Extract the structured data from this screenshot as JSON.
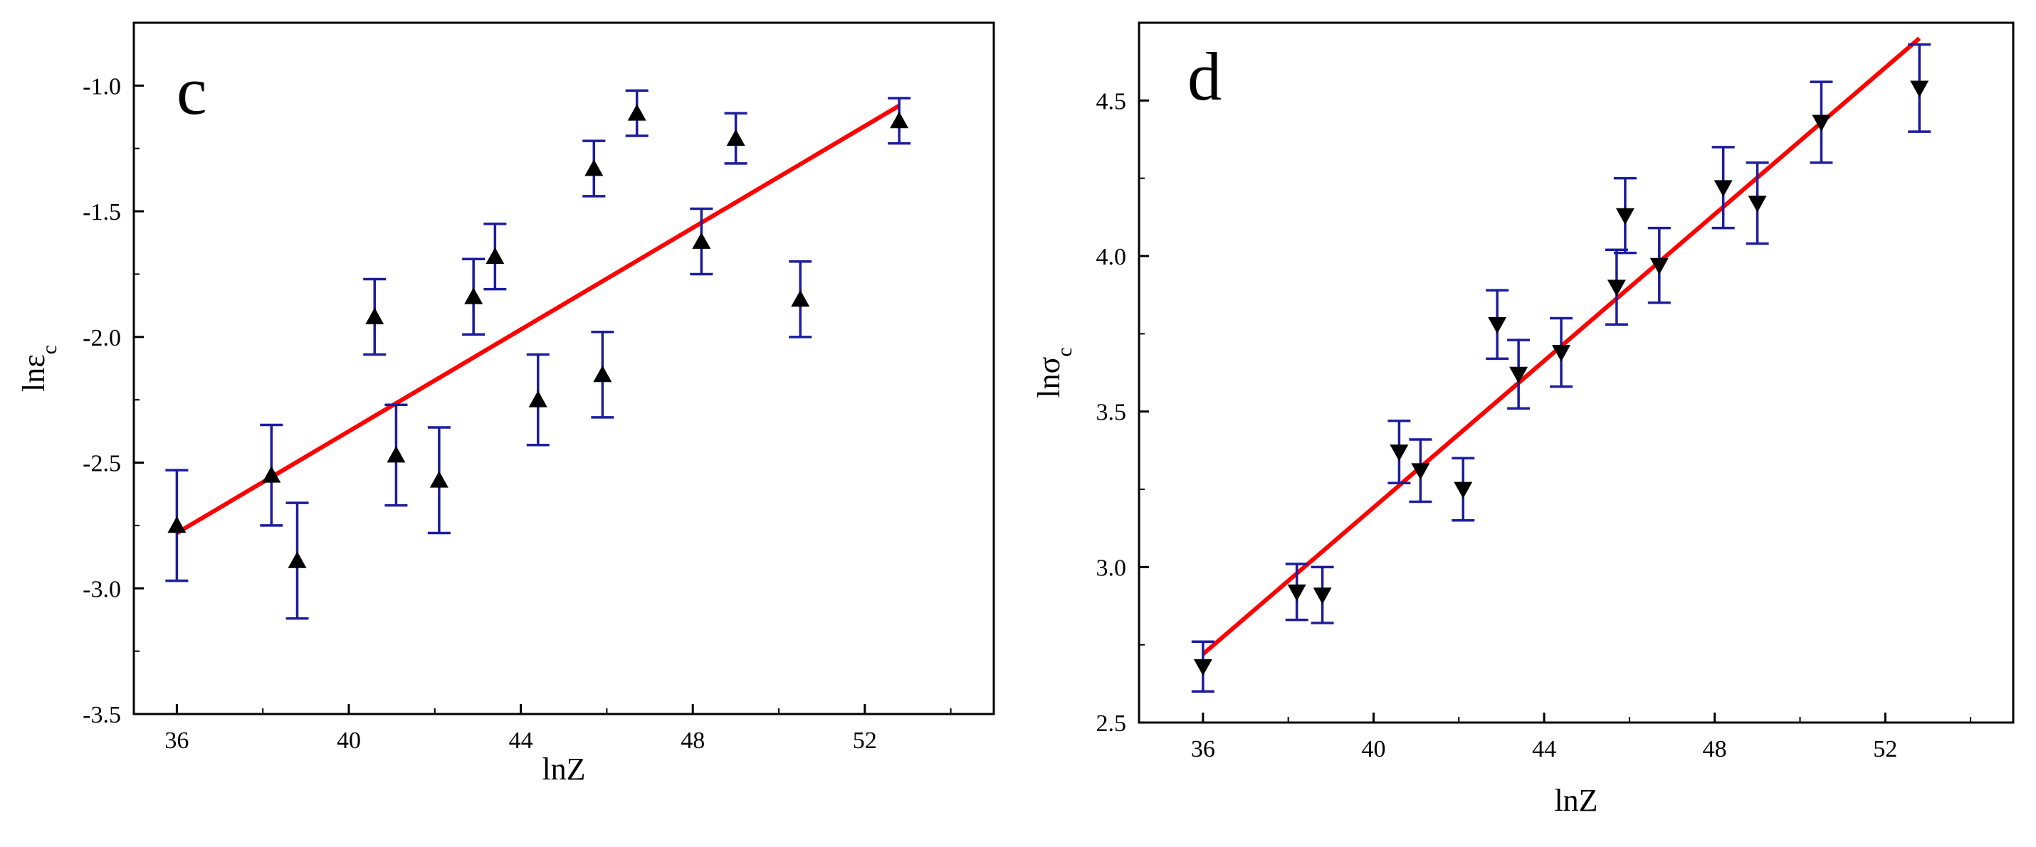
{
  "chart_data": [
    {
      "type": "scatter",
      "panel_label": "c",
      "xlabel": "lnZ",
      "ylabel": "lnε",
      "ylabel_sub": "c",
      "xlim": [
        35,
        55
      ],
      "ylim": [
        -3.5,
        -0.75
      ],
      "xticks": [
        36,
        40,
        44,
        48,
        52
      ],
      "xtick_labels": [
        "36",
        "40",
        "44",
        "48",
        "52"
      ],
      "yticks": [
        -3.5,
        -3.0,
        -2.5,
        -2.0,
        -1.5,
        -1.0
      ],
      "ytick_labels": [
        "-3.5",
        "-3.0",
        "-2.5",
        "-2.0",
        "-1.5",
        "-1.0"
      ],
      "marker": "triangle-up",
      "points": [
        {
          "x": 36.0,
          "y": -2.75,
          "err": 0.22
        },
        {
          "x": 38.2,
          "y": -2.55,
          "err": 0.2
        },
        {
          "x": 38.8,
          "y": -2.89,
          "err": 0.23
        },
        {
          "x": 40.6,
          "y": -1.92,
          "err": 0.15
        },
        {
          "x": 41.1,
          "y": -2.47,
          "err": 0.2
        },
        {
          "x": 42.1,
          "y": -2.57,
          "err": 0.21
        },
        {
          "x": 42.9,
          "y": -1.84,
          "err": 0.15
        },
        {
          "x": 43.4,
          "y": -1.68,
          "err": 0.13
        },
        {
          "x": 44.4,
          "y": -2.25,
          "err": 0.18
        },
        {
          "x": 45.7,
          "y": -1.33,
          "err": 0.11
        },
        {
          "x": 45.9,
          "y": -2.15,
          "err": 0.17
        },
        {
          "x": 46.7,
          "y": -1.11,
          "err": 0.09
        },
        {
          "x": 48.2,
          "y": -1.62,
          "err": 0.13
        },
        {
          "x": 49.0,
          "y": -1.21,
          "err": 0.1
        },
        {
          "x": 50.5,
          "y": -1.85,
          "err": 0.15
        },
        {
          "x": 52.8,
          "y": -1.14,
          "err": 0.09
        }
      ],
      "fit_line": {
        "x": [
          36.0,
          52.8
        ],
        "y": [
          -2.78,
          -1.08
        ]
      },
      "colors": {
        "marker": "#000000",
        "errorbar": "#1c1ca0",
        "fit": "#ff0000",
        "axes": "#000000"
      }
    },
    {
      "type": "scatter",
      "panel_label": "d",
      "xlabel": "lnZ",
      "ylabel": "lnσ",
      "ylabel_sub": "c",
      "xlim": [
        34.5,
        55
      ],
      "ylim": [
        2.5,
        4.75
      ],
      "xticks": [
        36,
        40,
        44,
        48,
        52
      ],
      "xtick_labels": [
        "36",
        "40",
        "44",
        "48",
        "52"
      ],
      "yticks": [
        2.5,
        3.0,
        3.5,
        4.0,
        4.5
      ],
      "ytick_labels": [
        "2.5",
        "3.0",
        "3.5",
        "4.0",
        "4.5"
      ],
      "marker": "triangle-down",
      "points": [
        {
          "x": 36.0,
          "y": 2.68,
          "err": 0.08
        },
        {
          "x": 38.2,
          "y": 2.92,
          "err": 0.09
        },
        {
          "x": 38.8,
          "y": 2.91,
          "err": 0.09
        },
        {
          "x": 40.6,
          "y": 3.37,
          "err": 0.1
        },
        {
          "x": 41.1,
          "y": 3.31,
          "err": 0.1
        },
        {
          "x": 42.1,
          "y": 3.25,
          "err": 0.1
        },
        {
          "x": 42.9,
          "y": 3.78,
          "err": 0.11
        },
        {
          "x": 43.4,
          "y": 3.62,
          "err": 0.11
        },
        {
          "x": 44.4,
          "y": 3.69,
          "err": 0.11
        },
        {
          "x": 45.7,
          "y": 3.9,
          "err": 0.12
        },
        {
          "x": 45.9,
          "y": 4.13,
          "err": 0.12
        },
        {
          "x": 46.7,
          "y": 3.97,
          "err": 0.12
        },
        {
          "x": 48.2,
          "y": 4.22,
          "err": 0.13
        },
        {
          "x": 49.0,
          "y": 4.17,
          "err": 0.13
        },
        {
          "x": 50.5,
          "y": 4.43,
          "err": 0.13
        },
        {
          "x": 52.8,
          "y": 4.54,
          "err": 0.14
        }
      ],
      "fit_line": {
        "x": [
          36.0,
          52.8
        ],
        "y": [
          2.72,
          4.7
        ]
      },
      "colors": {
        "marker": "#000000",
        "errorbar": "#1c1ca0",
        "fit": "#ff0000",
        "axes": "#000000"
      }
    }
  ]
}
